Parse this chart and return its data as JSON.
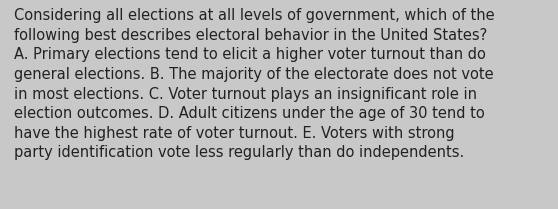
{
  "text_lines": [
    "Considering all elections at all levels of government, which of the",
    "following best describes electoral behavior in the United States?",
    "A. Primary elections tend to elicit a higher voter turnout than do",
    "general elections. B. The majority of the electorate does not vote",
    "in most elections. C. Voter turnout plays an insignificant role in",
    "election outcomes. D. Adult citizens under the age of 30 tend to",
    "have the highest rate of voter turnout. E. Voters with strong",
    "party identification vote less regularly than do independents."
  ],
  "background_color": "#c8c8c8",
  "text_color": "#222222",
  "font_size": 10.5,
  "fig_width": 5.58,
  "fig_height": 2.09,
  "dpi": 100
}
